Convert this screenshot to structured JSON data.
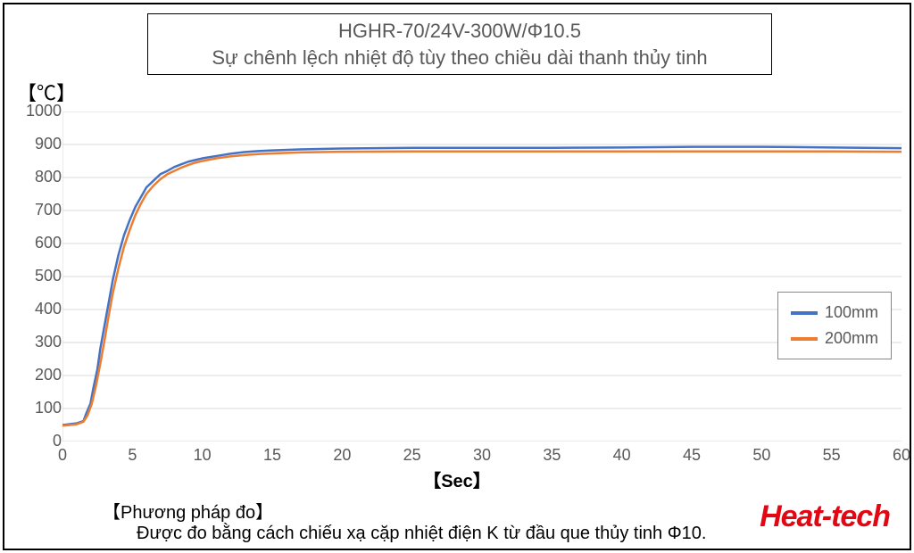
{
  "chart": {
    "title_line1": "HGHR-70/24V-300W/Φ10.5",
    "title_line2": "Sự chênh lệch nhiệt độ tùy theo chiều dài thanh thủy tinh",
    "y_unit": "【℃】",
    "x_unit": "【Sec】",
    "type": "line",
    "background_color": "#ffffff",
    "grid_color": "#d9d9d9",
    "axis_color": "#d9d9d9",
    "tick_color": "#595959",
    "text_color": "#595959",
    "xlim": [
      0,
      60
    ],
    "ylim": [
      0,
      1000
    ],
    "xtick_step": 5,
    "ytick_step": 100,
    "line_width": 2.5,
    "series": [
      {
        "label": "100mm",
        "color": "#4472c4",
        "data": [
          [
            0,
            50
          ],
          [
            1,
            55
          ],
          [
            1.5,
            62
          ],
          [
            1.7,
            85
          ],
          [
            2,
            115
          ],
          [
            2.2,
            160
          ],
          [
            2.5,
            220
          ],
          [
            2.7,
            280
          ],
          [
            3,
            350
          ],
          [
            3.3,
            420
          ],
          [
            3.6,
            490
          ],
          [
            4,
            565
          ],
          [
            4.4,
            625
          ],
          [
            4.8,
            670
          ],
          [
            5.2,
            710
          ],
          [
            5.6,
            740
          ],
          [
            6,
            770
          ],
          [
            6.5,
            790
          ],
          [
            7,
            810
          ],
          [
            7.5,
            820
          ],
          [
            8,
            832
          ],
          [
            8.5,
            840
          ],
          [
            9,
            848
          ],
          [
            9.5,
            853
          ],
          [
            10,
            858
          ],
          [
            11,
            865
          ],
          [
            12,
            872
          ],
          [
            13,
            877
          ],
          [
            14,
            880
          ],
          [
            15,
            882
          ],
          [
            17,
            885
          ],
          [
            20,
            888
          ],
          [
            25,
            890
          ],
          [
            30,
            890
          ],
          [
            35,
            890
          ],
          [
            40,
            891
          ],
          [
            45,
            893
          ],
          [
            50,
            893
          ],
          [
            55,
            891
          ],
          [
            60,
            889
          ]
        ]
      },
      {
        "label": "200mm",
        "color": "#ed7d31",
        "data": [
          [
            0,
            48
          ],
          [
            1,
            52
          ],
          [
            1.5,
            60
          ],
          [
            1.8,
            80
          ],
          [
            2.1,
            115
          ],
          [
            2.4,
            170
          ],
          [
            2.7,
            235
          ],
          [
            3,
            305
          ],
          [
            3.3,
            380
          ],
          [
            3.6,
            450
          ],
          [
            4,
            525
          ],
          [
            4.4,
            590
          ],
          [
            4.8,
            640
          ],
          [
            5.2,
            685
          ],
          [
            5.6,
            720
          ],
          [
            6,
            750
          ],
          [
            6.5,
            775
          ],
          [
            7,
            795
          ],
          [
            7.5,
            810
          ],
          [
            8,
            820
          ],
          [
            8.5,
            830
          ],
          [
            9,
            838
          ],
          [
            9.5,
            845
          ],
          [
            10,
            850
          ],
          [
            11,
            858
          ],
          [
            12,
            864
          ],
          [
            13,
            868
          ],
          [
            14,
            871
          ],
          [
            15,
            873
          ],
          [
            17,
            876
          ],
          [
            20,
            878
          ],
          [
            25,
            879
          ],
          [
            30,
            879
          ],
          [
            35,
            879
          ],
          [
            40,
            879
          ],
          [
            45,
            879
          ],
          [
            50,
            879
          ],
          [
            55,
            879
          ],
          [
            60,
            878
          ]
        ]
      }
    ],
    "legend": {
      "items": [
        "100mm",
        "200mm"
      ]
    },
    "footnote_title": "【Phương pháp đo】",
    "footnote_body": "Được đo bằng cách chiếu xạ cặp nhiệt điện K từ đầu que thủy tinh Φ10.",
    "brand": "Heat-tech"
  }
}
